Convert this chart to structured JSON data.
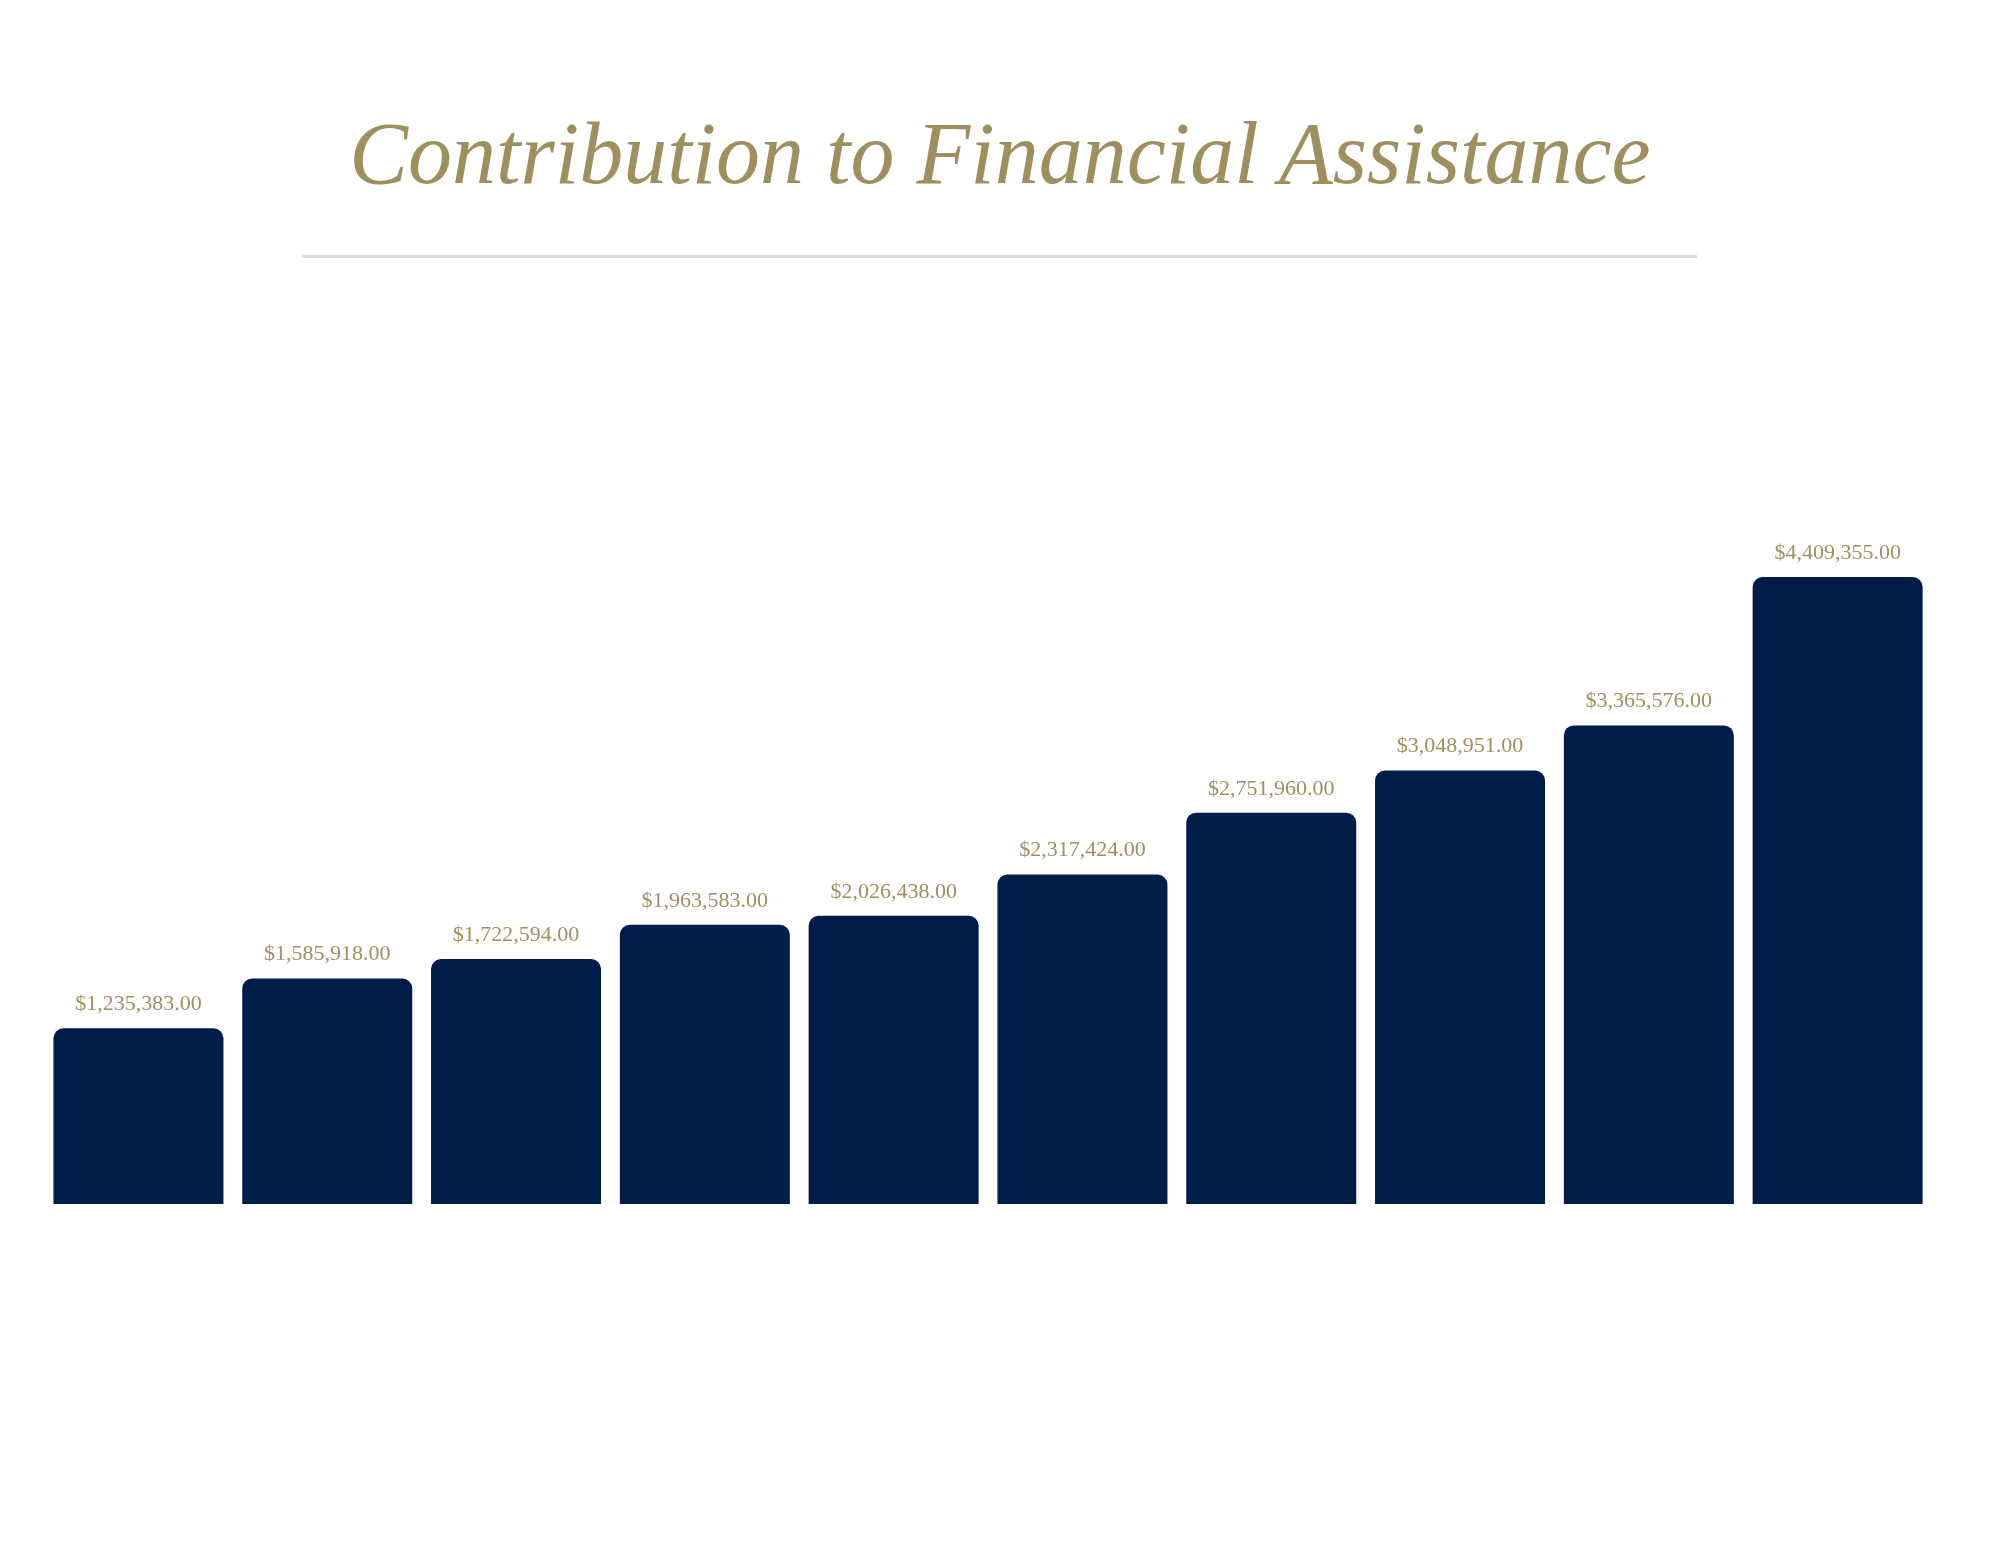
{
  "chart_data": {
    "type": "bar",
    "title": "Contribution to Financial Assistance",
    "categories": [
      null,
      null,
      null,
      null,
      null,
      null,
      null,
      null,
      null,
      null
    ],
    "values": [
      1235383,
      1585918,
      1722594,
      1963583,
      2026438,
      2317424,
      2751960,
      3048951,
      3365576,
      4409355
    ],
    "value_labels": [
      "$1,235,383.00",
      "$1,585,918.00",
      "$1,722,594.00",
      "$1,963,583.00",
      "$2,026,438.00",
      "$2,317,424.00",
      "$2,751,960.00",
      "$3,048,951.00",
      "$3,365,576.00",
      "$4,409,355.00"
    ],
    "color": "#001c48"
  }
}
